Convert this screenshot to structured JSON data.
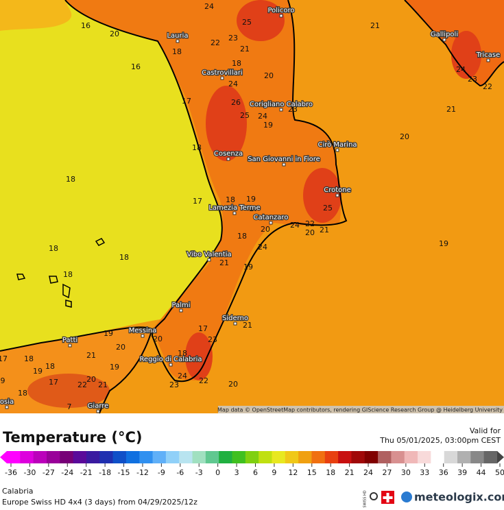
{
  "map": {
    "cities": [
      "Policoro",
      "Lauria",
      "Castrovillari",
      "Corigliano Calabro",
      "Gallipoli",
      "Tricase",
      "Cirò Marina",
      "Cosenza",
      "San Giovanni in Fiore",
      "Crotone",
      "Lamezia Terme",
      "Catanzaro",
      "Vibo Valentia",
      "Palmi",
      "Siderno",
      "Messina",
      "Patti",
      "Reggio di Calabria",
      "Giarre",
      "osia"
    ],
    "temperature_labels": [
      24,
      25,
      20,
      16,
      23,
      22,
      21,
      18,
      16,
      18,
      20,
      24,
      17,
      26,
      24,
      25,
      19,
      23,
      21,
      21,
      20,
      24,
      23,
      22,
      18,
      18,
      17,
      18,
      19,
      17,
      20,
      24,
      22,
      20,
      21,
      25,
      18,
      24,
      19,
      21,
      18,
      18,
      18,
      19,
      17,
      23,
      21,
      20,
      19,
      20,
      21,
      18,
      18,
      19,
      17,
      17,
      20,
      22,
      21,
      19,
      18,
      24,
      23,
      22,
      20,
      18,
      9,
      7
    ],
    "attribution": "Map data © OpenStreetMap contributors, rendering GIScience Research Group @ Heidelberg University"
  },
  "header": {
    "title": "Temperature (°C)",
    "valid_label": "Valid for",
    "valid_time": "Thu 05/01/2025, 03:00pm CEST"
  },
  "colorbar": {
    "ticks": [
      -36,
      -30,
      -27,
      -24,
      -21,
      -18,
      -15,
      -12,
      -9,
      -6,
      -3,
      0,
      3,
      6,
      9,
      12,
      15,
      18,
      21,
      24,
      27,
      30,
      33,
      36,
      39,
      44,
      50
    ]
  },
  "footer": {
    "region": "Calabria",
    "model": "Europe Swiss HD 4x4 (3 days) from 04/29/2025/12z",
    "badge": "SWISS HD",
    "brand": "meteologix.com"
  }
}
